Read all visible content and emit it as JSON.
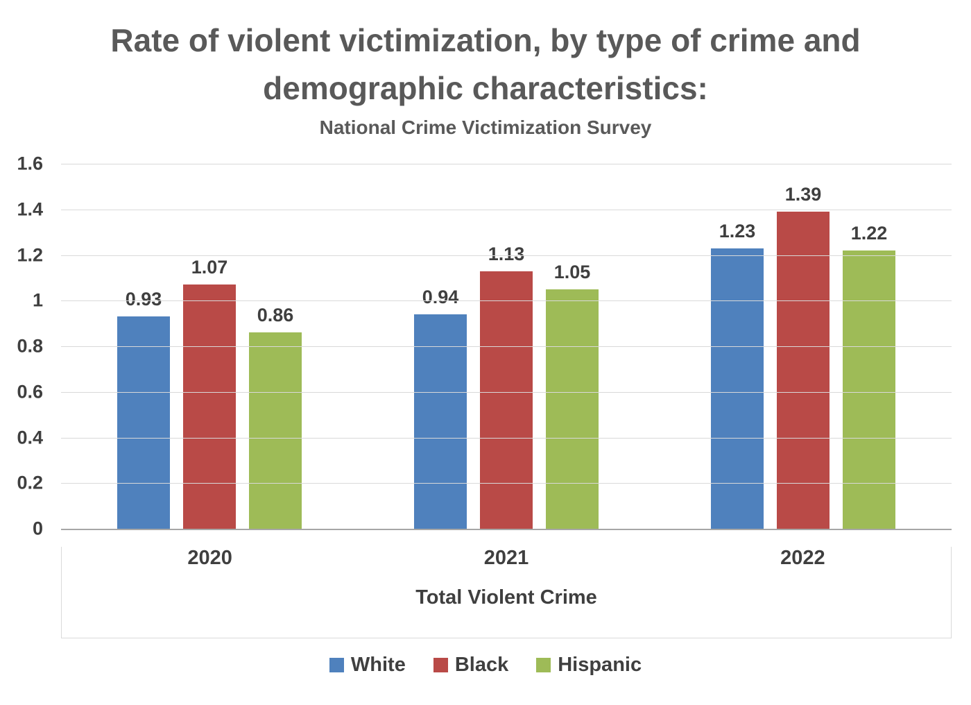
{
  "title": "Rate of violent victimization, by type of crime and demographic characteristics:",
  "subtitle": "National Crime Victimization Survey",
  "chart_data": {
    "type": "bar",
    "title": "Rate of violent victimization, by type of crime and demographic characteristics:",
    "subtitle": "National Crime Victimization Survey",
    "categories": [
      "2020",
      "2021",
      "2022"
    ],
    "series": [
      {
        "name": "White",
        "color": "#4F81BD",
        "values": [
          0.93,
          0.94,
          1.23
        ]
      },
      {
        "name": "Black",
        "color": "#B94A47",
        "values": [
          1.07,
          1.13,
          1.39
        ]
      },
      {
        "name": "Hispanic",
        "color": "#9EBB57",
        "values": [
          0.86,
          1.05,
          1.22
        ]
      }
    ],
    "xlabel": "Total Violent Crime",
    "ylabel": "",
    "ylim": [
      0,
      1.6
    ],
    "y_ticks": [
      {
        "value": 0,
        "label": "0"
      },
      {
        "value": 0.2,
        "label": "0.2"
      },
      {
        "value": 0.4,
        "label": "0.4"
      },
      {
        "value": 0.6,
        "label": "0.6"
      },
      {
        "value": 0.8,
        "label": "0.8"
      },
      {
        "value": 1,
        "label": "1"
      },
      {
        "value": 1.2,
        "label": "1.2"
      },
      {
        "value": 1.4,
        "label": "1.4"
      },
      {
        "value": 1.6,
        "label": "1.6"
      }
    ],
    "grid": true,
    "legend_position": "bottom"
  }
}
